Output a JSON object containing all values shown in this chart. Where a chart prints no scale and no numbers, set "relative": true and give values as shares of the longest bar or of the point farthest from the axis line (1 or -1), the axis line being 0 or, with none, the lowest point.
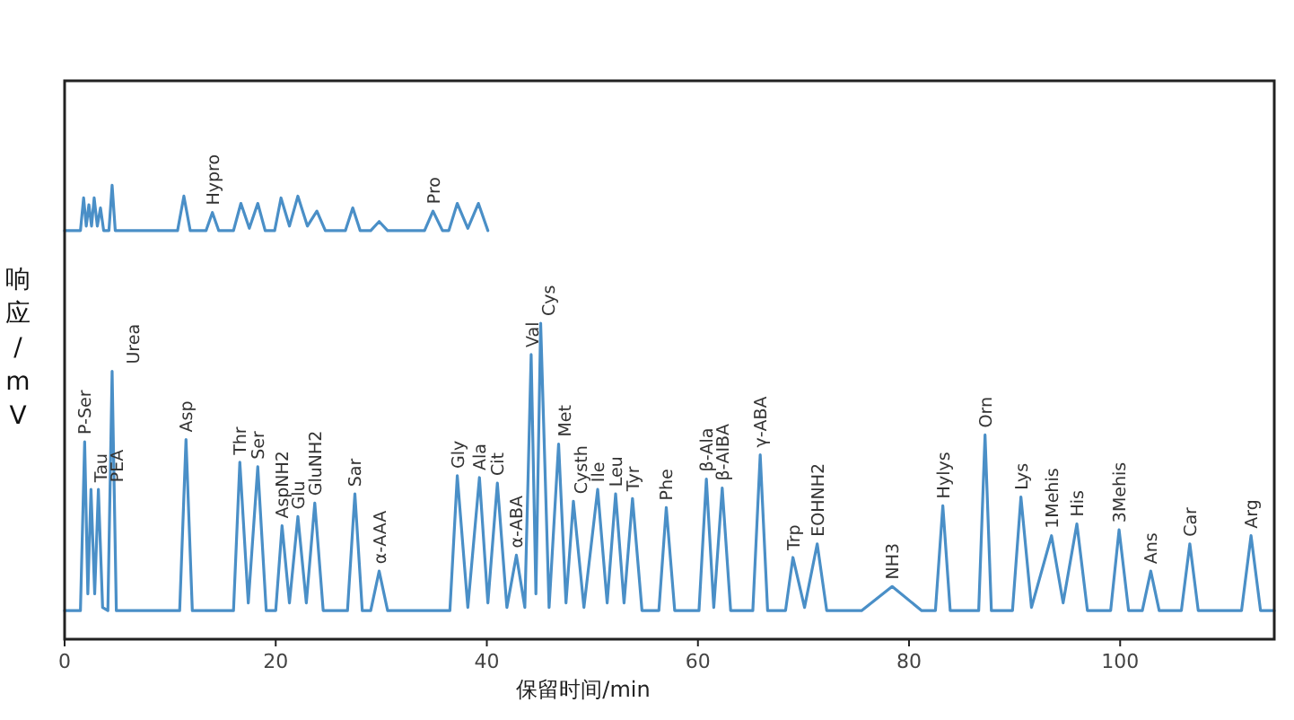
{
  "chart_data": {
    "type": "line",
    "relative": true,
    "xlabel": "保留时间/min",
    "ylabel": "响应/mV",
    "xlim": [
      0,
      114.6
    ],
    "xticks": [
      0,
      20,
      40,
      60,
      80,
      100
    ],
    "grid": false,
    "marker": "none",
    "line_style": "solid",
    "series": [
      {
        "color": "#4a8fc7",
        "x": [
          0,
          1.5,
          1.9,
          2.2,
          2.5,
          2.85,
          3.2,
          3.6,
          4.1,
          4.5,
          4.9,
          10.9,
          11.5,
          12.1,
          16.0,
          16.6,
          17.4,
          18.3,
          19.1,
          20.0,
          20.6,
          21.3,
          22.1,
          22.9,
          23.7,
          24.5,
          26.8,
          27.5,
          28.2,
          29.0,
          29.8,
          30.6,
          36.5,
          37.2,
          38.2,
          39.3,
          40.1,
          41.0,
          41.9,
          42.8,
          43.6,
          44.2,
          44.65,
          45.1,
          45.9,
          46.8,
          47.5,
          48.2,
          49.2,
          50.5,
          51.4,
          52.2,
          53.0,
          53.8,
          54.7,
          56.3,
          57.0,
          57.8,
          60.1,
          60.8,
          61.5,
          62.3,
          63.1,
          65.2,
          65.9,
          66.6,
          68.3,
          69.0,
          70.1,
          71.3,
          72.2,
          75.5,
          78.4,
          81.2,
          82.5,
          83.2,
          83.9,
          86.6,
          87.2,
          87.8,
          89.8,
          90.6,
          91.6,
          93.5,
          94.6,
          95.9,
          96.9,
          99.1,
          99.9,
          100.8,
          102.1,
          102.9,
          103.7,
          105.8,
          106.6,
          107.4,
          111.5,
          112.4,
          113.3,
          114.6
        ],
        "values": [
          0.063,
          0.063,
          0.435,
          0.1,
          0.33,
          0.1,
          0.33,
          0.07,
          0.063,
          0.59,
          0.063,
          0.063,
          0.44,
          0.063,
          0.063,
          0.39,
          0.08,
          0.38,
          0.063,
          0.063,
          0.25,
          0.08,
          0.27,
          0.08,
          0.3,
          0.063,
          0.063,
          0.32,
          0.063,
          0.063,
          0.15,
          0.063,
          0.063,
          0.36,
          0.07,
          0.356,
          0.08,
          0.344,
          0.07,
          0.185,
          0.07,
          0.627,
          0.1,
          0.696,
          0.07,
          0.43,
          0.08,
          0.304,
          0.07,
          0.33,
          0.08,
          0.32,
          0.08,
          0.31,
          0.063,
          0.063,
          0.29,
          0.063,
          0.063,
          0.353,
          0.07,
          0.333,
          0.063,
          0.063,
          0.406,
          0.063,
          0.063,
          0.18,
          0.07,
          0.21,
          0.063,
          0.063,
          0.116,
          0.063,
          0.063,
          0.294,
          0.063,
          0.063,
          0.45,
          0.063,
          0.063,
          0.313,
          0.07,
          0.228,
          0.08,
          0.254,
          0.063,
          0.063,
          0.241,
          0.063,
          0.063,
          0.15,
          0.063,
          0.063,
          0.21,
          0.063,
          0.063,
          0.228,
          0.063,
          0.063
        ]
      },
      {
        "color": "#4a8fc7",
        "x": [
          0,
          1.5,
          1.8,
          2.05,
          2.3,
          2.55,
          2.8,
          3.1,
          3.4,
          3.7,
          4.2,
          4.5,
          4.8,
          10.7,
          11.3,
          11.9,
          13.4,
          14.0,
          14.6,
          16.0,
          16.7,
          17.5,
          18.3,
          19.0,
          19.9,
          20.5,
          21.3,
          22.1,
          23.0,
          23.9,
          24.7,
          26.6,
          27.3,
          28.0,
          29.0,
          29.8,
          30.6,
          34.1,
          34.9,
          35.8,
          36.4,
          37.2,
          38.2,
          39.2,
          40.1
        ],
        "values": [
          0.9,
          0.9,
          0.972,
          0.91,
          0.957,
          0.91,
          0.972,
          0.91,
          0.95,
          0.9,
          0.9,
          1.0,
          0.9,
          0.9,
          0.976,
          0.9,
          0.9,
          0.94,
          0.9,
          0.9,
          0.96,
          0.905,
          0.96,
          0.9,
          0.9,
          0.972,
          0.91,
          0.976,
          0.91,
          0.943,
          0.9,
          0.9,
          0.95,
          0.9,
          0.9,
          0.92,
          0.9,
          0.9,
          0.943,
          0.9,
          0.9,
          0.96,
          0.905,
          0.96,
          0.9
        ]
      }
    ],
    "annotations": [
      {
        "text": "P-Ser",
        "x": 1.9,
        "y": 0.435
      },
      {
        "text": "Tau",
        "x": 2.5,
        "y": 0.33
      },
      {
        "text": "PEA",
        "x": 3.2,
        "y": 0.33
      },
      {
        "text": "Urea",
        "x": 4.5,
        "y": 0.59
      },
      {
        "text": "Asp",
        "x": 11.5,
        "y": 0.44
      },
      {
        "text": "Thr",
        "x": 16.6,
        "y": 0.39
      },
      {
        "text": "Ser",
        "x": 18.3,
        "y": 0.38
      },
      {
        "text": "AspNH2",
        "x": 20.6,
        "y": 0.25
      },
      {
        "text": "Glu",
        "x": 22.1,
        "y": 0.27
      },
      {
        "text": "GluNH2",
        "x": 23.7,
        "y": 0.3
      },
      {
        "text": "Sar",
        "x": 27.5,
        "y": 0.32
      },
      {
        "text": "α-AAA",
        "x": 29.8,
        "y": 0.15
      },
      {
        "text": "Gly",
        "x": 37.2,
        "y": 0.36
      },
      {
        "text": "Ala",
        "x": 39.3,
        "y": 0.356
      },
      {
        "text": "Cit",
        "x": 41.0,
        "y": 0.344
      },
      {
        "text": "α-ABA",
        "x": 42.8,
        "y": 0.185
      },
      {
        "text": "Val",
        "x": 44.2,
        "y": 0.627
      },
      {
        "text": "Cys",
        "x": 45.1,
        "y": 0.696
      },
      {
        "text": "Met",
        "x": 46.8,
        "y": 0.43
      },
      {
        "text": "Cysth",
        "x": 48.2,
        "y": 0.304
      },
      {
        "text": "Ile",
        "x": 50.5,
        "y": 0.33
      },
      {
        "text": "Leu",
        "x": 52.2,
        "y": 0.32
      },
      {
        "text": "Tyr",
        "x": 53.8,
        "y": 0.31
      },
      {
        "text": "Phe",
        "x": 57.0,
        "y": 0.29
      },
      {
        "text": "β-Ala",
        "x": 60.8,
        "y": 0.353
      },
      {
        "text": "β-AIBA",
        "x": 62.3,
        "y": 0.333
      },
      {
        "text": "γ-ABA",
        "x": 65.9,
        "y": 0.406
      },
      {
        "text": "Trp",
        "x": 69.0,
        "y": 0.18
      },
      {
        "text": "EOHNH2",
        "x": 71.3,
        "y": 0.21
      },
      {
        "text": "NH3",
        "x": 78.4,
        "y": 0.116
      },
      {
        "text": "Hylys",
        "x": 83.2,
        "y": 0.294
      },
      {
        "text": "Orn",
        "x": 87.2,
        "y": 0.45
      },
      {
        "text": "Lys",
        "x": 90.6,
        "y": 0.313
      },
      {
        "text": "1Mehis",
        "x": 93.5,
        "y": 0.228
      },
      {
        "text": "His",
        "x": 95.9,
        "y": 0.254
      },
      {
        "text": "3Mehis",
        "x": 99.9,
        "y": 0.241
      },
      {
        "text": "Ans",
        "x": 102.9,
        "y": 0.15
      },
      {
        "text": "Car",
        "x": 106.6,
        "y": 0.21
      },
      {
        "text": "Arg",
        "x": 112.4,
        "y": 0.228
      },
      {
        "text": "Hypro",
        "x": 14.0,
        "y": 0.94
      },
      {
        "text": "Pro",
        "x": 34.9,
        "y": 0.943
      }
    ]
  }
}
